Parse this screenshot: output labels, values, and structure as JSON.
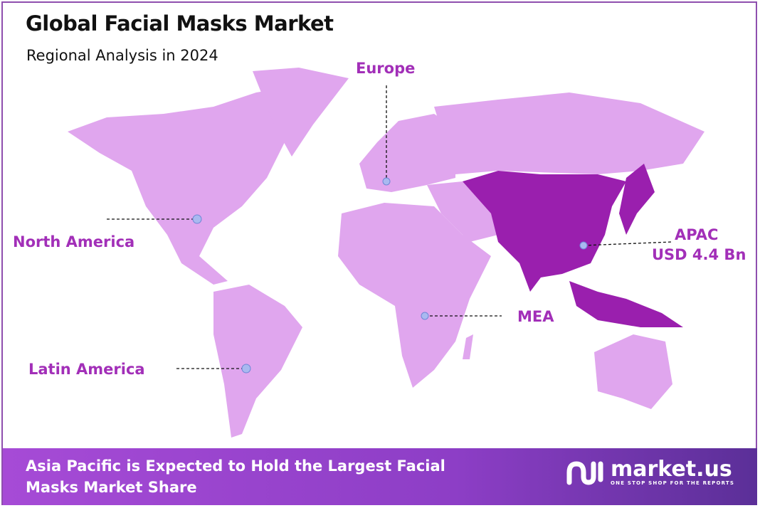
{
  "header": {
    "title": "Global Facial Masks Market",
    "subtitle": "Regional Analysis in 2024"
  },
  "colors": {
    "region_default": "#e0a6ee",
    "region_highlight": "#9a1fae",
    "label": "#a22fb8",
    "marker": "#a9b9f0",
    "border": "#8e4fae"
  },
  "regions": [
    {
      "name": "North America",
      "highlighted": false
    },
    {
      "name": "Europe",
      "highlighted": false
    },
    {
      "name": "APAC",
      "value": "USD 4.4 Bn",
      "highlighted": true
    },
    {
      "name": "MEA",
      "highlighted": false
    },
    {
      "name": "Latin America",
      "highlighted": false
    }
  ],
  "footer": {
    "text_line1": "Asia Pacific is Expected to Hold the Largest Facial",
    "text_line2": "Masks Market Share",
    "logo_name": "market.us",
    "logo_tagline": "ONE STOP SHOP FOR THE REPORTS"
  }
}
